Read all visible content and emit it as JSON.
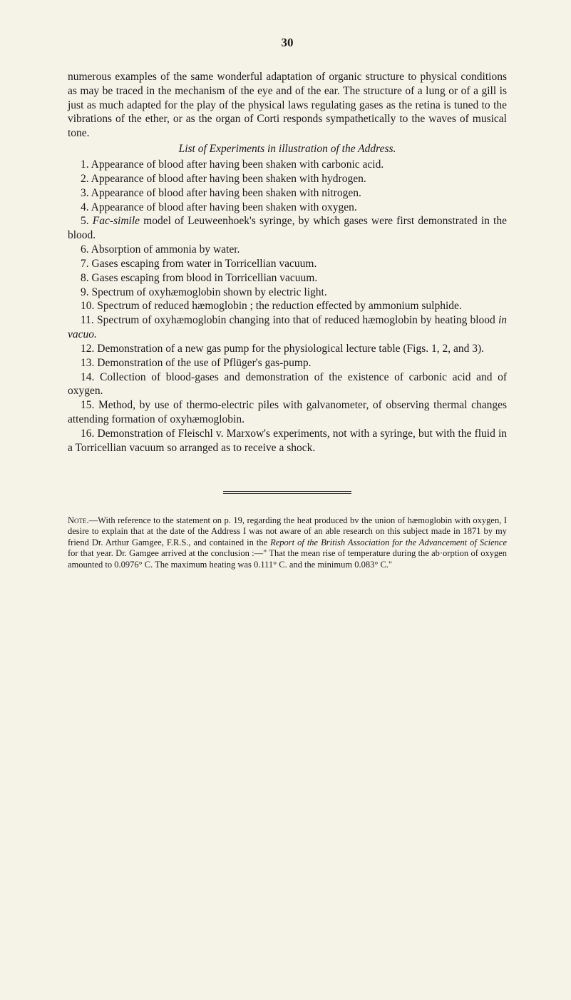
{
  "pageNumber": "30",
  "para1": "numerous examples of the same wonderful adaptation of organic structure to physical conditions as may be traced in the mechanism of the eye and of the ear. The structure of a lung or of a gill is just as much adapted for the play of the physical laws regulating gases as the retina is tuned to the vibrations of the ether, or as the organ of Corti responds sympathetically to the waves of musical tone.",
  "listTitle": "List of Experiments in illustration of the Address.",
  "item1": "1. Appearance of blood after having been shaken with carbonic acid.",
  "item2": "2. Appearance of blood after having been shaken with hydrogen.",
  "item3": "3. Appearance of blood after having been shaken with nitrogen.",
  "item4": "4. Appearance of blood after having been shaken with oxygen.",
  "item5a": "5. ",
  "item5b": "Fac-simile",
  "item5c": " model of Leuweenhoek's syringe, by which gases were first demonstrated in the blood.",
  "item6": "6. Absorption of ammonia by water.",
  "item7": "7. Gases escaping from water in Torricellian vacuum.",
  "item8": "8. Gases escaping from blood in Torricellian vacuum.",
  "item9": "9. Spectrum of oxyhæmoglobin shown by electric light.",
  "item10": "10. Spectrum of reduced hæmoglobin ; the reduction effected by ammonium sulphide.",
  "item11a": "11. Spectrum of oxyhæmoglobin changing into that of reduced hæmoglobin by heating blood ",
  "item11b": "in vacuo.",
  "item12": "12. Demonstration of a new gas pump for the physiological lecture table (Figs. 1, 2, and 3).",
  "item13": "13. Demonstration of the use of Pflüger's gas-pump.",
  "item14": "14. Collection of blood-gases and demonstration of the existence of carbonic acid and of oxygen.",
  "item15": "15. Method, by use of thermo-electric piles with galvanometer, of observing thermal changes attending formation of oxyhæmoglobin.",
  "item16": "16. Demonstration of Fleischl v. Marxow's experiments, not with a syringe, but with the fluid in a Torricellian vacuum so arranged as to receive a shock.",
  "noteLabel": "Note.",
  "noteText1": "—With reference to the statement on p. 19, regarding the heat produced bv the union of hæmoglobin with oxygen, I desire to explain that at the date of the Address I was not aware of an able research on this subject made in 1871 by my friend Dr. Arthur Gamgee, F.R.S., and contained in the ",
  "noteItalic1": "Report of the British Association for the Advancement of Science",
  "noteText2": " for that year. Dr. Gamgee arrived at the conclusion :—\" That the mean rise of temperature during the ab·orption of oxygen amounted to 0.0976° C. The maximum heating was 0.111° C. and the minimum 0.083° C.\""
}
